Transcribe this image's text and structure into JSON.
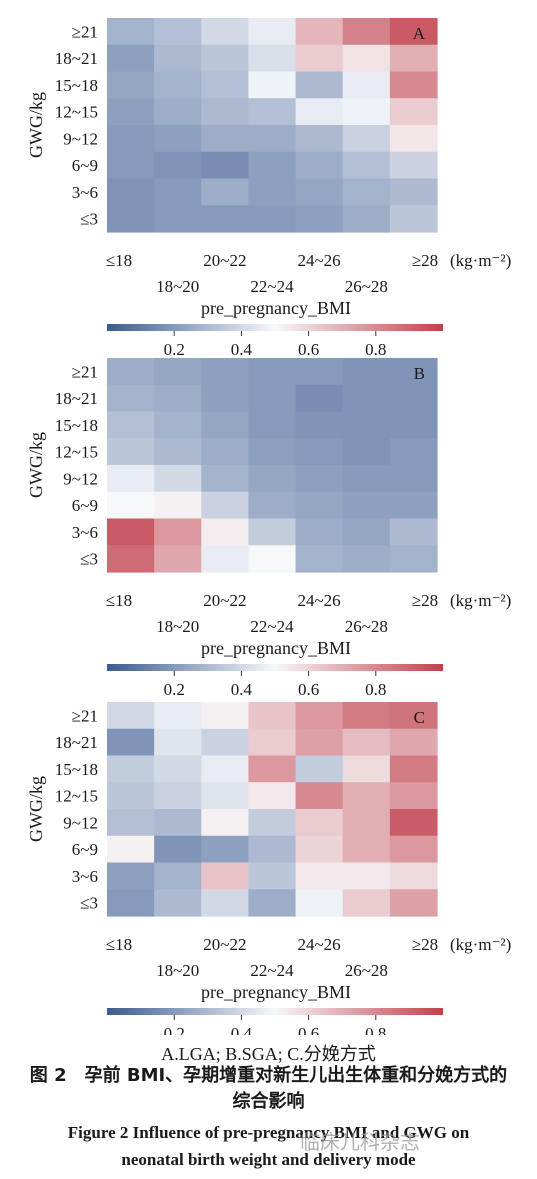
{
  "chart_data": [
    {
      "type": "heatmap",
      "panel_label": "A",
      "ylabel": "GWG/kg",
      "xlabel": "pre_pregnancy_BMI",
      "x_unit": "(kg·m⁻²)",
      "x_categories": [
        "≤18",
        "18~20",
        "20~22",
        "22~24",
        "24~26",
        "26~28",
        "≥28"
      ],
      "y_categories": [
        "≥21",
        "18~21",
        "15~18",
        "12~15",
        "9~12",
        "6~9",
        "3~6",
        "≤3"
      ],
      "values": [
        [
          0.28,
          0.32,
          0.4,
          0.46,
          0.68,
          0.82,
          0.93
        ],
        [
          0.22,
          0.3,
          0.34,
          0.42,
          0.62,
          0.56,
          0.7
        ],
        [
          0.24,
          0.28,
          0.32,
          0.48,
          0.3,
          0.46,
          0.8
        ],
        [
          0.22,
          0.26,
          0.3,
          0.32,
          0.46,
          0.48,
          0.62
        ],
        [
          0.2,
          0.22,
          0.26,
          0.26,
          0.3,
          0.38,
          0.55
        ],
        [
          0.2,
          0.18,
          0.16,
          0.22,
          0.26,
          0.32,
          0.38
        ],
        [
          0.18,
          0.2,
          0.26,
          0.22,
          0.24,
          0.28,
          0.3
        ],
        [
          0.18,
          0.2,
          0.2,
          0.2,
          0.22,
          0.26,
          0.34
        ]
      ],
      "colorbar_ticks": [
        "0.2",
        "0.4",
        "0.6",
        "0.8"
      ]
    },
    {
      "type": "heatmap",
      "panel_label": "B",
      "ylabel": "GWG/kg",
      "xlabel": "pre_pregnancy_BMI",
      "x_unit": "(kg·m⁻²)",
      "x_categories": [
        "≤18",
        "18~20",
        "20~22",
        "22~24",
        "24~26",
        "26~28",
        "≥28"
      ],
      "y_categories": [
        "≥21",
        "18~21",
        "15~18",
        "12~15",
        "9~12",
        "6~9",
        "3~6",
        "≤3"
      ],
      "values": [
        [
          0.26,
          0.24,
          0.22,
          0.2,
          0.2,
          0.18,
          0.18
        ],
        [
          0.28,
          0.26,
          0.22,
          0.2,
          0.16,
          0.18,
          0.18
        ],
        [
          0.32,
          0.28,
          0.24,
          0.2,
          0.18,
          0.18,
          0.18
        ],
        [
          0.34,
          0.3,
          0.26,
          0.22,
          0.2,
          0.18,
          0.2
        ],
        [
          0.46,
          0.4,
          0.28,
          0.24,
          0.22,
          0.2,
          0.2
        ],
        [
          0.5,
          0.52,
          0.38,
          0.26,
          0.24,
          0.22,
          0.22
        ],
        [
          0.93,
          0.76,
          0.53,
          0.36,
          0.26,
          0.24,
          0.3
        ],
        [
          0.88,
          0.72,
          0.46,
          0.5,
          0.28,
          0.26,
          0.28
        ]
      ],
      "colorbar_ticks": [
        "0.2",
        "0.4",
        "0.6",
        "0.8"
      ]
    },
    {
      "type": "heatmap",
      "panel_label": "C",
      "ylabel": "GWG/kg",
      "xlabel": "pre_pregnancy_BMI",
      "x_unit": "(kg·m⁻²)",
      "x_categories": [
        "≤18",
        "18~20",
        "20~22",
        "22~24",
        "24~26",
        "26~28",
        "≥28"
      ],
      "y_categories": [
        "≥21",
        "18~21",
        "15~18",
        "12~15",
        "9~12",
        "6~9",
        "3~6",
        "≤3"
      ],
      "values": [
        [
          0.4,
          0.46,
          0.52,
          0.64,
          0.76,
          0.84,
          0.86
        ],
        [
          0.18,
          0.44,
          0.38,
          0.62,
          0.74,
          0.66,
          0.72
        ],
        [
          0.36,
          0.4,
          0.46,
          0.76,
          0.36,
          0.58,
          0.84
        ],
        [
          0.34,
          0.38,
          0.44,
          0.54,
          0.8,
          0.7,
          0.76
        ],
        [
          0.32,
          0.3,
          0.52,
          0.36,
          0.62,
          0.7,
          0.92
        ],
        [
          0.52,
          0.18,
          0.22,
          0.3,
          0.6,
          0.7,
          0.76
        ],
        [
          0.22,
          0.28,
          0.64,
          0.34,
          0.54,
          0.54,
          0.58
        ],
        [
          0.2,
          0.3,
          0.4,
          0.26,
          0.48,
          0.62,
          0.74
        ]
      ],
      "colorbar_ticks": [
        "0.2",
        "0.4",
        "0.6",
        "0.8"
      ]
    }
  ],
  "colorscale": {
    "low": "#3b5b91",
    "mid": "#f7f8fa",
    "high": "#c1404b",
    "min": 0.0,
    "max": 1.0
  },
  "captions": {
    "sub": "A.LGA; B.SGA; C.分娩方式",
    "zh_line1": "图 2　孕前 BMI、孕期增重对新生儿出生体重和分娩方式的",
    "zh_line2": "综合影响",
    "en_line1": "Figure 2 Influence of pre-pregnancy BMI and GWG on",
    "en_line2": "neonatal birth weight and delivery mode"
  },
  "watermark": "临床儿科杂志"
}
